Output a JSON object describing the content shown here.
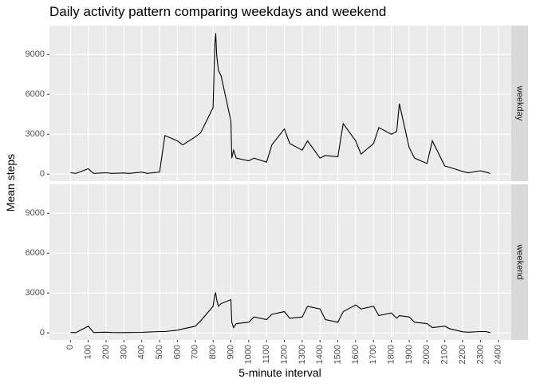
{
  "chart_data": {
    "type": "line",
    "title": "Daily activity pattern comparing weekdays and weekend",
    "xlabel": "5-minute interval",
    "ylabel": "Mean steps",
    "xlim": [
      -117.75,
      2472.75
    ],
    "xticks": [
      0,
      100,
      200,
      300,
      400,
      500,
      600,
      700,
      800,
      900,
      1000,
      1100,
      1200,
      1300,
      1400,
      1500,
      1600,
      1700,
      1800,
      1900,
      2000,
      2100,
      2200,
      2300,
      2400
    ],
    "ylim": [
      -530,
      11180
    ],
    "yticks": [
      0,
      3000,
      6000,
      9000
    ],
    "grid": true,
    "x": [
      0,
      30,
      100,
      130,
      200,
      230,
      300,
      330,
      400,
      430,
      500,
      530,
      600,
      630,
      700,
      730,
      800,
      810,
      815,
      820,
      830,
      845,
      900,
      905,
      915,
      930,
      1000,
      1030,
      1100,
      1130,
      1200,
      1230,
      1300,
      1330,
      1400,
      1430,
      1500,
      1530,
      1600,
      1630,
      1700,
      1730,
      1800,
      1830,
      1845,
      1900,
      1930,
      2000,
      2030,
      2100,
      2130,
      2200,
      2230,
      2300,
      2330,
      2355
    ],
    "series": [
      {
        "name": "weekday",
        "color": "#000000",
        "values": [
          100,
          50,
          400,
          50,
          100,
          50,
          80,
          50,
          150,
          50,
          150,
          2900,
          2500,
          2200,
          2800,
          3100,
          5000,
          9800,
          10600,
          9000,
          7800,
          7400,
          4000,
          1200,
          1800,
          1200,
          1000,
          1200,
          900,
          2200,
          3400,
          2300,
          1800,
          2500,
          1200,
          1400,
          1300,
          3800,
          2500,
          1500,
          2300,
          3500,
          3000,
          3200,
          5300,
          2000,
          1200,
          800,
          2500,
          600,
          500,
          200,
          100,
          250,
          150,
          50
        ]
      },
      {
        "name": "weekend",
        "color": "#000000",
        "values": [
          30,
          20,
          500,
          30,
          50,
          30,
          20,
          30,
          40,
          60,
          100,
          100,
          200,
          300,
          500,
          900,
          2000,
          2900,
          3000,
          2500,
          2000,
          2200,
          2500,
          800,
          400,
          700,
          800,
          1200,
          1000,
          1400,
          1600,
          1100,
          1200,
          2000,
          1800,
          1000,
          800,
          1600,
          2100,
          1800,
          2000,
          1300,
          1500,
          1100,
          1300,
          1200,
          800,
          700,
          400,
          500,
          300,
          80,
          50,
          100,
          100,
          20
        ]
      }
    ]
  }
}
